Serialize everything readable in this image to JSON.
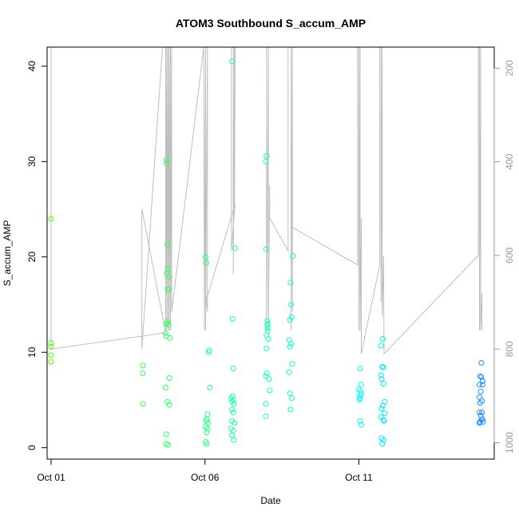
{
  "chart_data": {
    "type": "scatter",
    "title": "ATOM3 Southbound S_accum_AMP",
    "xlabel": "Date",
    "ylabel": "S_accum_AMP",
    "x_ticks": [
      {
        "day": 1,
        "label": "Oct 01"
      },
      {
        "day": 6,
        "label": "Oct 06"
      },
      {
        "day": 11,
        "label": "Oct 11"
      }
    ],
    "xlim_days": [
      0.87,
      15.4
    ],
    "ylim": [
      -1.2,
      42
    ],
    "y_ticks": [
      0,
      10,
      20,
      30,
      40
    ],
    "right_axis": {
      "reversed": true,
      "ylim": [
        1035,
        155
      ],
      "ticks": [
        200,
        400,
        600,
        800,
        1000
      ],
      "color": "#999999"
    },
    "grid": false,
    "colors": {
      "gradient_start": "#4cff00",
      "gradient_mid": "#00ffff",
      "gradient_end": "#1c8cff",
      "line": "#bebebe"
    },
    "points": [
      {
        "x": 1.0,
        "y": 24.0
      },
      {
        "x": 1.0,
        "y": 11.0
      },
      {
        "x": 1.0,
        "y": 10.6
      },
      {
        "x": 1.0,
        "y": 9.7
      },
      {
        "x": 1.0,
        "y": 9.0
      },
      {
        "x": 3.98,
        "y": 8.6
      },
      {
        "x": 3.98,
        "y": 7.8
      },
      {
        "x": 3.98,
        "y": 4.6
      },
      {
        "x": 4.75,
        "y": 30.2
      },
      {
        "x": 4.75,
        "y": 29.8
      },
      {
        "x": 4.78,
        "y": 21.3
      },
      {
        "x": 4.8,
        "y": 18.8
      },
      {
        "x": 4.76,
        "y": 18.3
      },
      {
        "x": 4.82,
        "y": 17.9
      },
      {
        "x": 4.8,
        "y": 16.6
      },
      {
        "x": 4.82,
        "y": 16.6
      },
      {
        "x": 4.78,
        "y": 13.2
      },
      {
        "x": 4.74,
        "y": 13.0
      },
      {
        "x": 4.82,
        "y": 12.9
      },
      {
        "x": 4.72,
        "y": 12.0
      },
      {
        "x": 4.74,
        "y": 11.7
      },
      {
        "x": 4.86,
        "y": 11.5
      },
      {
        "x": 4.84,
        "y": 7.3
      },
      {
        "x": 4.72,
        "y": 6.3
      },
      {
        "x": 4.78,
        "y": 4.8
      },
      {
        "x": 4.84,
        "y": 4.5
      },
      {
        "x": 4.74,
        "y": 1.4
      },
      {
        "x": 4.74,
        "y": 0.4
      },
      {
        "x": 4.8,
        "y": 0.3
      },
      {
        "x": 6.02,
        "y": 20.0
      },
      {
        "x": 6.04,
        "y": 19.4
      },
      {
        "x": 6.14,
        "y": 10.2
      },
      {
        "x": 6.12,
        "y": 10.0
      },
      {
        "x": 6.16,
        "y": 6.3
      },
      {
        "x": 6.08,
        "y": 3.5
      },
      {
        "x": 6.06,
        "y": 3.0
      },
      {
        "x": 6.04,
        "y": 2.8
      },
      {
        "x": 6.1,
        "y": 2.6
      },
      {
        "x": 6.02,
        "y": 2.2
      },
      {
        "x": 6.08,
        "y": 2.0
      },
      {
        "x": 6.06,
        "y": 1.6
      },
      {
        "x": 6.02,
        "y": 0.6
      },
      {
        "x": 6.06,
        "y": 0.4
      },
      {
        "x": 6.88,
        "y": 40.5
      },
      {
        "x": 6.98,
        "y": 20.9
      },
      {
        "x": 6.9,
        "y": 13.5
      },
      {
        "x": 6.92,
        "y": 8.3
      },
      {
        "x": 6.84,
        "y": 5.2
      },
      {
        "x": 6.9,
        "y": 5.4
      },
      {
        "x": 6.92,
        "y": 5.0
      },
      {
        "x": 6.88,
        "y": 4.8
      },
      {
        "x": 6.94,
        "y": 4.6
      },
      {
        "x": 6.88,
        "y": 4.0
      },
      {
        "x": 6.92,
        "y": 3.7
      },
      {
        "x": 6.88,
        "y": 2.8
      },
      {
        "x": 6.96,
        "y": 2.6
      },
      {
        "x": 6.84,
        "y": 2.0
      },
      {
        "x": 6.92,
        "y": 1.8
      },
      {
        "x": 6.88,
        "y": 1.3
      },
      {
        "x": 6.94,
        "y": 0.8
      },
      {
        "x": 8.0,
        "y": 30.6
      },
      {
        "x": 7.98,
        "y": 30.0
      },
      {
        "x": 7.98,
        "y": 20.8
      },
      {
        "x": 8.02,
        "y": 13.3
      },
      {
        "x": 8.04,
        "y": 13.0
      },
      {
        "x": 8.02,
        "y": 12.8
      },
      {
        "x": 8.04,
        "y": 12.5
      },
      {
        "x": 8.04,
        "y": 12.2
      },
      {
        "x": 8.0,
        "y": 11.8
      },
      {
        "x": 8.06,
        "y": 11.4
      },
      {
        "x": 8.0,
        "y": 10.4
      },
      {
        "x": 8.02,
        "y": 7.8
      },
      {
        "x": 7.98,
        "y": 7.5
      },
      {
        "x": 8.08,
        "y": 7.2
      },
      {
        "x": 8.1,
        "y": 6.0
      },
      {
        "x": 7.98,
        "y": 4.6
      },
      {
        "x": 7.98,
        "y": 3.3
      },
      {
        "x": 8.86,
        "y": 20.1
      },
      {
        "x": 8.78,
        "y": 17.3
      },
      {
        "x": 8.8,
        "y": 15.0
      },
      {
        "x": 8.82,
        "y": 13.7
      },
      {
        "x": 8.76,
        "y": 13.4
      },
      {
        "x": 8.74,
        "y": 11.3
      },
      {
        "x": 8.8,
        "y": 10.9
      },
      {
        "x": 8.76,
        "y": 10.6
      },
      {
        "x": 8.84,
        "y": 8.8
      },
      {
        "x": 8.74,
        "y": 7.9
      },
      {
        "x": 8.76,
        "y": 5.7
      },
      {
        "x": 8.82,
        "y": 5.2
      },
      {
        "x": 8.78,
        "y": 4.0
      },
      {
        "x": 11.04,
        "y": 8.3
      },
      {
        "x": 11.08,
        "y": 6.6
      },
      {
        "x": 11.0,
        "y": 6.1
      },
      {
        "x": 11.06,
        "y": 5.9
      },
      {
        "x": 11.08,
        "y": 5.6
      },
      {
        "x": 11.02,
        "y": 5.4
      },
      {
        "x": 11.04,
        "y": 5.2
      },
      {
        "x": 11.02,
        "y": 5.0
      },
      {
        "x": 11.04,
        "y": 2.8
      },
      {
        "x": 11.08,
        "y": 2.4
      },
      {
        "x": 11.78,
        "y": 11.4
      },
      {
        "x": 11.72,
        "y": 10.7
      },
      {
        "x": 11.76,
        "y": 8.5
      },
      {
        "x": 11.8,
        "y": 8.4
      },
      {
        "x": 11.72,
        "y": 7.6
      },
      {
        "x": 11.74,
        "y": 7.2
      },
      {
        "x": 11.8,
        "y": 6.7
      },
      {
        "x": 11.84,
        "y": 4.8
      },
      {
        "x": 11.78,
        "y": 4.4
      },
      {
        "x": 11.74,
        "y": 4.1
      },
      {
        "x": 11.84,
        "y": 3.6
      },
      {
        "x": 11.72,
        "y": 3.2
      },
      {
        "x": 11.8,
        "y": 2.9
      },
      {
        "x": 11.82,
        "y": 2.8
      },
      {
        "x": 11.74,
        "y": 1.0
      },
      {
        "x": 11.8,
        "y": 0.8
      },
      {
        "x": 11.76,
        "y": 0.4
      },
      {
        "x": 14.98,
        "y": 8.9
      },
      {
        "x": 14.94,
        "y": 7.5
      },
      {
        "x": 14.98,
        "y": 7.4
      },
      {
        "x": 15.02,
        "y": 7.0
      },
      {
        "x": 14.92,
        "y": 6.6
      },
      {
        "x": 15.02,
        "y": 6.6
      },
      {
        "x": 14.96,
        "y": 5.9
      },
      {
        "x": 14.92,
        "y": 5.3
      },
      {
        "x": 15.0,
        "y": 4.9
      },
      {
        "x": 14.94,
        "y": 4.7
      },
      {
        "x": 14.92,
        "y": 3.7
      },
      {
        "x": 15.0,
        "y": 3.7
      },
      {
        "x": 14.96,
        "y": 3.4
      },
      {
        "x": 15.02,
        "y": 3.0
      },
      {
        "x": 14.98,
        "y": 2.9
      },
      {
        "x": 14.94,
        "y": 2.7
      },
      {
        "x": 15.04,
        "y": 2.7
      },
      {
        "x": 14.92,
        "y": 2.6
      }
    ],
    "line_right_axis": [
      [
        1.0,
        155
      ],
      [
        1.0,
        800
      ],
      [
        4.72,
        765
      ],
      [
        3.95,
        500
      ],
      [
        3.95,
        800
      ],
      [
        4.62,
        155
      ],
      [
        4.72,
        155
      ],
      [
        4.72,
        760
      ],
      [
        4.76,
        155
      ],
      [
        4.76,
        760
      ],
      [
        4.8,
        155
      ],
      [
        4.8,
        760
      ],
      [
        4.84,
        155
      ],
      [
        4.84,
        760
      ],
      [
        4.88,
        155
      ],
      [
        4.88,
        760
      ],
      [
        4.92,
        155
      ],
      [
        4.92,
        720
      ],
      [
        5.96,
        155
      ],
      [
        5.98,
        760
      ],
      [
        6.02,
        155
      ],
      [
        6.02,
        760
      ],
      [
        6.08,
        155
      ],
      [
        6.08,
        720
      ],
      [
        6.02,
        680
      ],
      [
        6.02,
        700
      ],
      [
        6.98,
        490
      ],
      [
        6.86,
        590
      ],
      [
        6.86,
        155
      ],
      [
        6.92,
        155
      ],
      [
        6.92,
        640
      ],
      [
        6.96,
        155
      ],
      [
        6.96,
        490
      ],
      [
        6.98,
        155
      ],
      [
        6.98,
        155
      ],
      [
        7.9,
        155
      ],
      [
        8.0,
        155
      ],
      [
        8.0,
        760
      ],
      [
        8.06,
        155
      ],
      [
        8.06,
        760
      ],
      [
        8.1,
        450
      ],
      [
        8.1,
        520
      ],
      [
        8.7,
        590
      ],
      [
        8.7,
        155
      ],
      [
        8.8,
        155
      ],
      [
        8.8,
        760
      ],
      [
        8.84,
        155
      ],
      [
        8.84,
        720
      ],
      [
        8.84,
        470
      ],
      [
        8.84,
        540
      ],
      [
        10.96,
        620
      ],
      [
        10.96,
        155
      ],
      [
        11.0,
        155
      ],
      [
        11.0,
        760
      ],
      [
        11.04,
        155
      ],
      [
        11.04,
        760
      ],
      [
        11.08,
        520
      ],
      [
        11.08,
        810
      ],
      [
        11.08,
        810
      ],
      [
        11.68,
        620
      ],
      [
        11.68,
        155
      ],
      [
        11.72,
        155
      ],
      [
        11.72,
        700
      ],
      [
        11.76,
        155
      ],
      [
        11.76,
        730
      ],
      [
        11.8,
        600
      ],
      [
        11.82,
        810
      ],
      [
        11.82,
        810
      ],
      [
        14.88,
        600
      ],
      [
        14.88,
        155
      ],
      [
        14.92,
        155
      ],
      [
        14.92,
        760
      ],
      [
        14.96,
        155
      ],
      [
        14.96,
        760
      ],
      [
        15.0,
        680
      ],
      [
        15.0,
        760
      ]
    ]
  }
}
